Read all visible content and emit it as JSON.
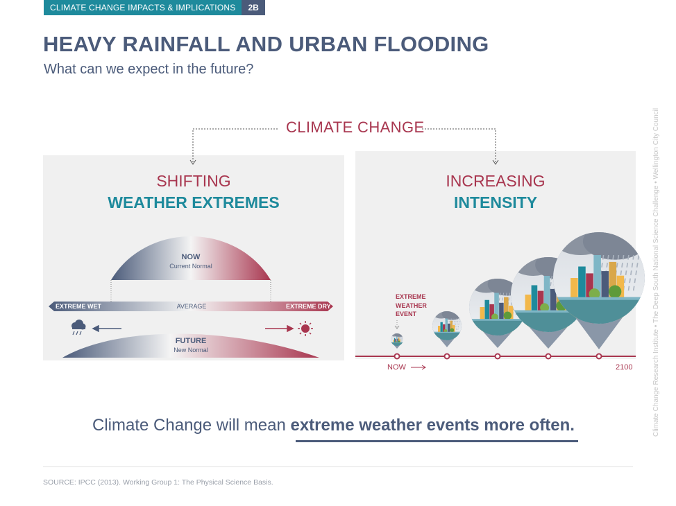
{
  "header": {
    "tag": "CLIMATE CHANGE IMPACTS & IMPLICATIONS",
    "code": "2B"
  },
  "title": "HEAVY RAINFALL AND URBAN FLOODING",
  "subtitle": "What can we expect in the future?",
  "center_label": "CLIMATE CHANGE",
  "left_panel": {
    "title_line1": "SHIFTING",
    "title_line2": "WEATHER EXTREMES",
    "now_label": "NOW",
    "now_sub": "Current Normal",
    "future_label": "FUTURE",
    "future_sub": "New Normal",
    "extreme_wet": "EXTREME WET",
    "average": "AVERAGE",
    "extreme_dry": "EXTREME DRY",
    "icons": [
      "rain-cloud-icon",
      "sun-icon"
    ]
  },
  "right_panel": {
    "title_line1": "INCREASING",
    "title_line2": "INTENSITY",
    "event_label": "EXTREME\nWEATHER\nEVENT",
    "timeline_start": "NOW",
    "timeline_end": "2100"
  },
  "summary": {
    "prefix": "Climate Change will mean ",
    "emphasis": "extreme weather events more often."
  },
  "source": "SOURCE:  IPCC (2013). Working Group 1: The Physical Science Basis.",
  "side_credit": "Climate Change Research Institute  •  The Deep South National Science Challenge  •  Wellington City Council",
  "colors": {
    "navy": "#4b5b7a",
    "teal": "#1e8a9c",
    "crimson": "#a8364f",
    "panel": "#f0f0f0"
  }
}
